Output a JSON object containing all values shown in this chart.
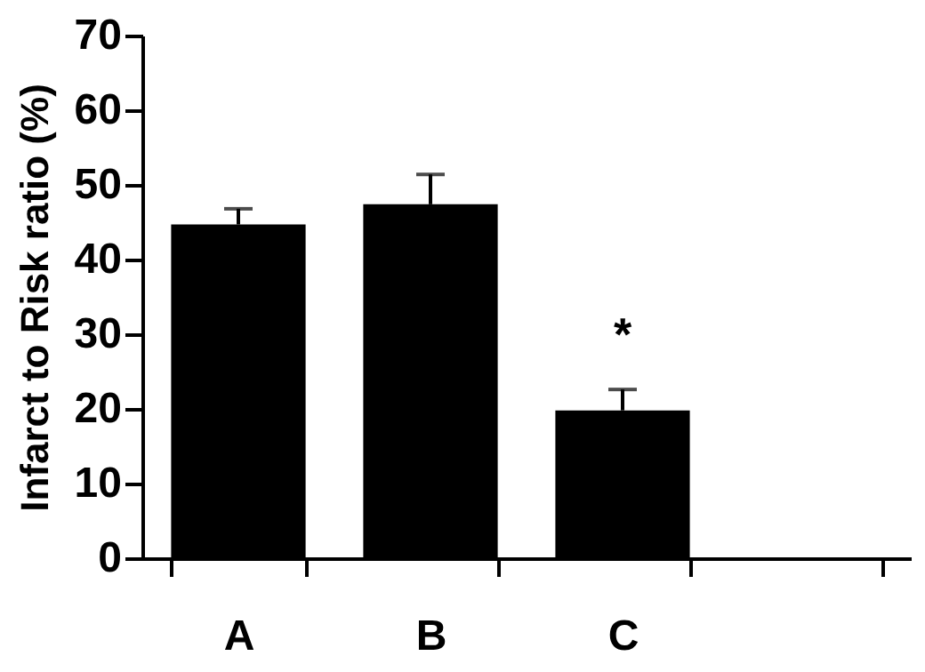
{
  "chart_data": {
    "type": "bar",
    "ylabel": "Infarct to Risk ratio (%)",
    "categories": [
      "A",
      "B",
      "C",
      null
    ],
    "values": [
      44.7,
      47.4,
      19.8,
      null
    ],
    "errors": [
      2.1,
      4.0,
      2.8,
      null
    ],
    "color": "#000000",
    "ylim": [
      0,
      70
    ],
    "yticks": [
      0,
      10,
      20,
      30,
      40,
      50,
      60,
      70
    ],
    "grid": false,
    "annotations": [
      "*"
    ]
  }
}
